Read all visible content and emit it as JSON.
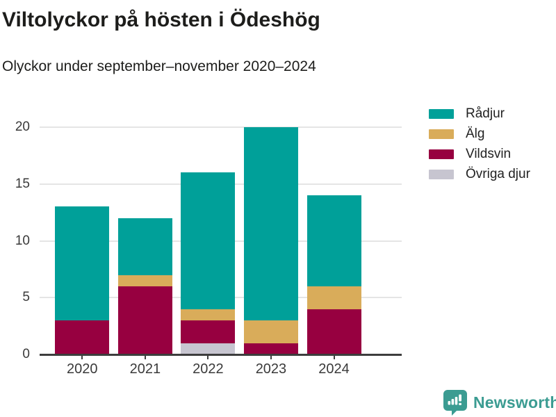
{
  "header": {
    "title": "Viltolyckor på hösten i Ödeshög",
    "subtitle": "Olyckor under september–november 2020–2024"
  },
  "brand": {
    "name": "Newsworthy",
    "color": "#3b9c92",
    "icon": "bar-chart-speech-bubble-icon"
  },
  "colors": {
    "radjur": "#00A099",
    "alg": "#D9AC5A",
    "vildsvin": "#970040",
    "ovriga_djur": "#C7C5D0",
    "axis": "#3d3d3d",
    "grid": "#e5e5e5",
    "text": "#1d1d1b",
    "tick_text": "#3a3a3a"
  },
  "chart_data": {
    "type": "bar",
    "stacked": true,
    "title": "Viltolyckor på hösten i Ödeshög",
    "subtitle": "Olyckor under september–november 2020–2024",
    "xlabel": "",
    "ylabel": "",
    "categories": [
      "2020",
      "2021",
      "2022",
      "2023",
      "2024"
    ],
    "series": [
      {
        "name": "Rådjur",
        "color": "#00A099",
        "values": [
          10,
          5,
          12,
          17,
          8
        ]
      },
      {
        "name": "Älg",
        "color": "#D9AC5A",
        "values": [
          0,
          1,
          1,
          2,
          2
        ]
      },
      {
        "name": "Vildsvin",
        "color": "#970040",
        "values": [
          3,
          6,
          2,
          1,
          4
        ]
      },
      {
        "name": "Övriga djur",
        "color": "#C7C5D0",
        "values": [
          0,
          0,
          1,
          0,
          0
        ]
      }
    ],
    "totals": [
      13,
      12,
      16,
      20,
      14
    ],
    "stack_order_bottom_to_top": [
      "Övriga djur",
      "Vildsvin",
      "Älg",
      "Rådjur"
    ],
    "ylim": [
      0,
      20
    ],
    "yticks": [
      0,
      5,
      10,
      15,
      20
    ],
    "grid": true,
    "legend_position": "top-right"
  }
}
